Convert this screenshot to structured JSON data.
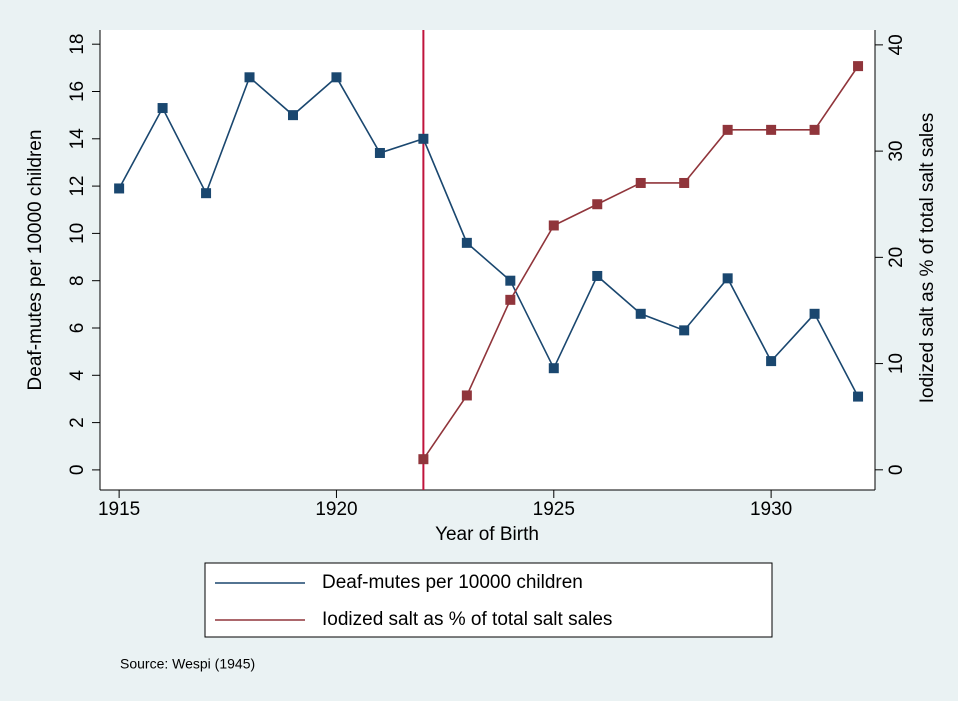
{
  "chart_data": {
    "type": "line",
    "x": [
      1915,
      1916,
      1917,
      1918,
      1919,
      1920,
      1921,
      1922,
      1923,
      1924,
      1925,
      1926,
      1927,
      1928,
      1929,
      1930,
      1931,
      1932
    ],
    "series": [
      {
        "name": "Deaf-mutes per 10000 children",
        "color": "#1a476f",
        "axis": "y",
        "values": [
          11.9,
          15.3,
          11.7,
          16.6,
          15.0,
          16.6,
          13.4,
          14.0,
          9.6,
          8.0,
          4.3,
          8.2,
          6.6,
          5.9,
          8.1,
          4.6,
          6.6,
          3.1
        ]
      },
      {
        "name": "Iodized salt as % of total salt sales",
        "color": "#90353b",
        "axis": "y2",
        "values": [
          null,
          null,
          null,
          null,
          null,
          null,
          null,
          1,
          7,
          16,
          23,
          25,
          27,
          27,
          32,
          32,
          32,
          38
        ]
      }
    ],
    "xlabel": "Year of Birth",
    "ylabel": "Deaf-mutes per 10000 children",
    "y2label": "Iodized salt as % of total salt sales",
    "xlim": [
      1914.56,
      1932.39
    ],
    "xticks": [
      1915,
      1920,
      1925,
      1930
    ],
    "ylim": [
      -0.85,
      18.6
    ],
    "yticks": [
      0,
      2,
      4,
      6,
      8,
      10,
      12,
      14,
      16,
      18
    ],
    "y2lim": [
      -1.9,
      41.4
    ],
    "y2ticks": [
      0,
      10,
      20,
      30,
      40
    ],
    "reference_line": {
      "x": 1922,
      "color": "#c0143c"
    },
    "legend": "bottom",
    "source": "Source: Wespi (1945)"
  }
}
